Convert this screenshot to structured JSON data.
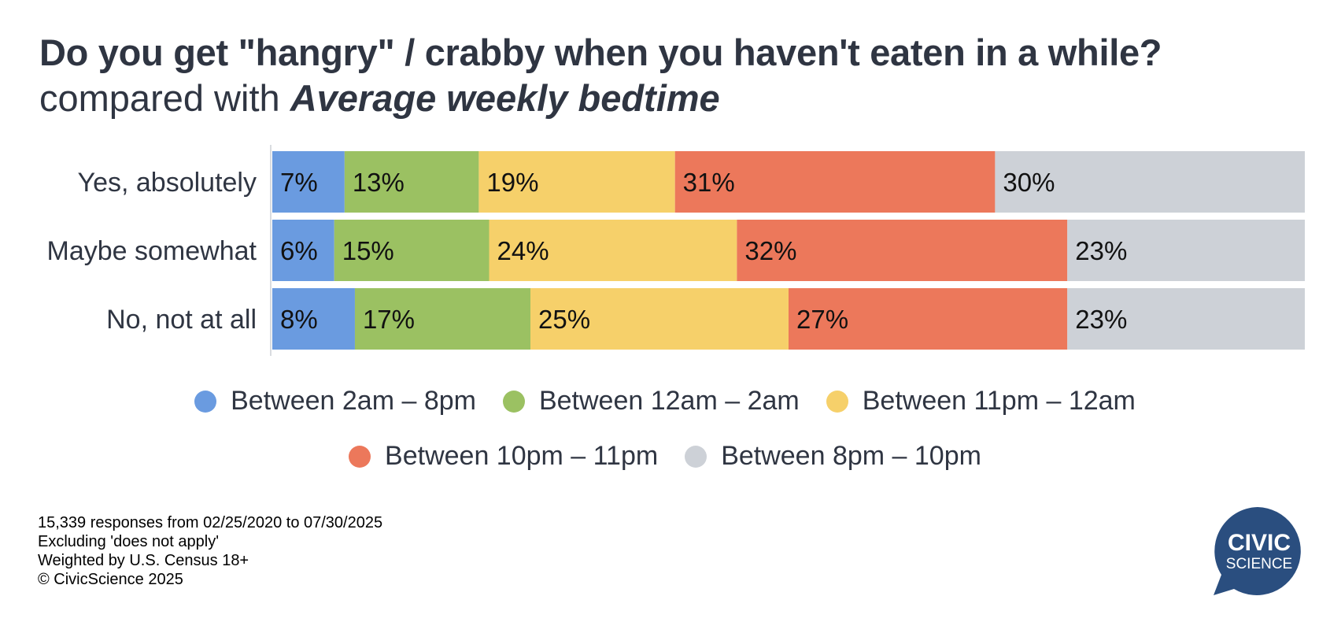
{
  "header": {
    "title": "Do you get \"hangry\" / crabby when you haven't eaten in a while?",
    "subtitle_prefix": "compared with ",
    "subtitle_emphasis": "Average weekly bedtime"
  },
  "chart_data": {
    "type": "bar",
    "orientation": "horizontal",
    "stacked": true,
    "categories": [
      "Yes, absolutely",
      "Maybe somewhat",
      "No, not at all"
    ],
    "series": [
      {
        "name": "Between 2am – 8pm",
        "color": "#6a9be0",
        "values": [
          7,
          6,
          8
        ]
      },
      {
        "name": "Between 12am – 2am",
        "color": "#9bc162",
        "values": [
          13,
          15,
          17
        ]
      },
      {
        "name": "Between 11pm – 12am",
        "color": "#f6d06a",
        "values": [
          19,
          24,
          25
        ]
      },
      {
        "name": "Between 10pm – 11pm",
        "color": "#ec785b",
        "values": [
          31,
          32,
          27
        ]
      },
      {
        "name": "Between 8pm – 10pm",
        "color": "#cdd1d7",
        "values": [
          30,
          23,
          23
        ]
      }
    ],
    "value_suffix": "%",
    "legend_position": "bottom",
    "grid": false
  },
  "legend": {
    "rows": [
      [
        0,
        1,
        2
      ],
      [
        3,
        4
      ]
    ]
  },
  "footnotes": [
    "15,339 responses from 02/25/2020 to 07/30/2025",
    "Excluding 'does not apply'",
    "Weighted by U.S. Census 18+",
    "© CivicScience 2025"
  ],
  "logo": {
    "line1": "CIVIC",
    "line2": "SCIENCE",
    "color": "#2a4e7f"
  }
}
